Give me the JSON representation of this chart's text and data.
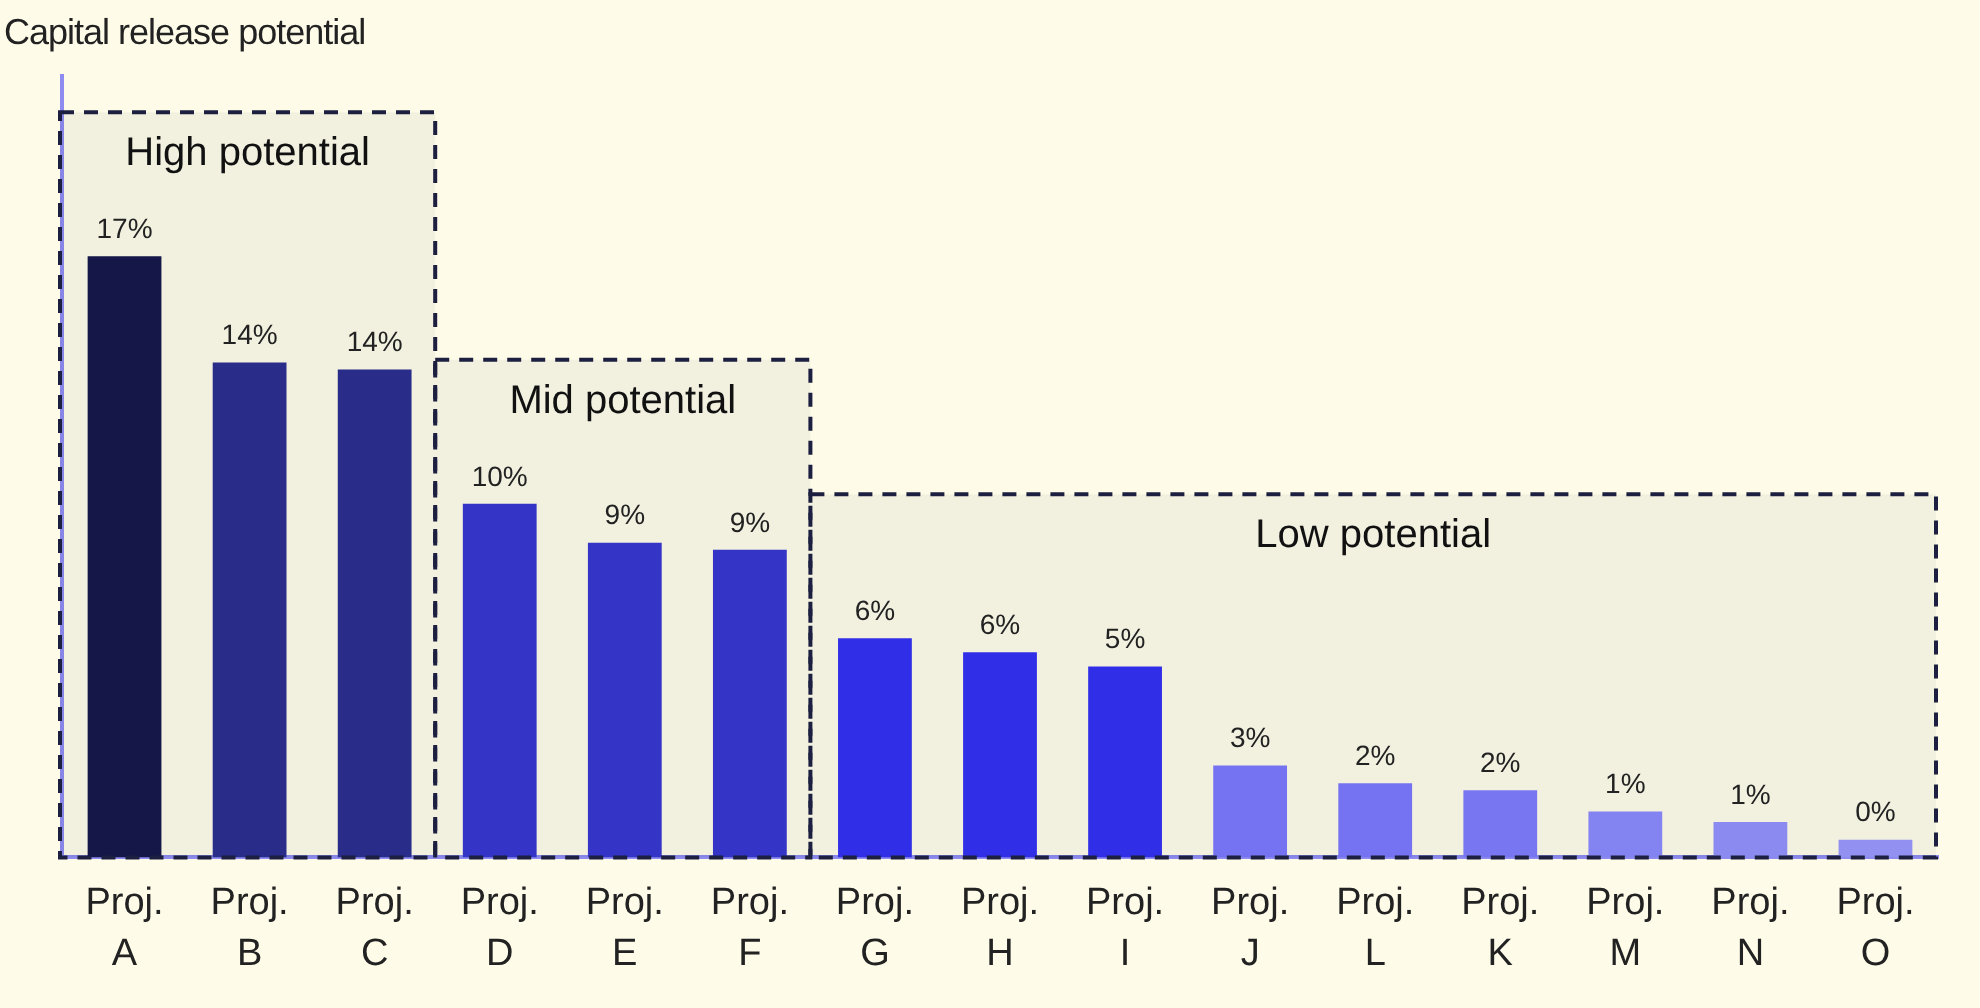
{
  "chart_data": {
    "type": "bar",
    "annotations": [
      "Capital release potential"
    ],
    "categories": [
      "Proj.\nA",
      "Proj.\nB",
      "Proj.\nC",
      "Proj.\nD",
      "Proj.\nE",
      "Proj.\nF",
      "Proj.\nG",
      "Proj.\nH",
      "Proj.\nI",
      "Proj.\nJ",
      "Proj.\nL",
      "Proj.\nK",
      "Proj.\nM",
      "Proj.\nN",
      "Proj.\nO"
    ],
    "values": [
      17,
      14,
      13.8,
      10,
      8.9,
      8.7,
      6.2,
      5.8,
      5.4,
      2.6,
      2.1,
      1.9,
      1.3,
      1,
      0.5
    ],
    "value_labels": [
      "17%",
      "14%",
      "14%",
      "10%",
      "9%",
      "9%",
      "6%",
      "6%",
      "5%",
      "3%",
      "2%",
      "2%",
      "1%",
      "1%",
      "0%"
    ],
    "colors": [
      "#16174a",
      "#2b2d8e",
      "#2b2d8e",
      "#3635cf",
      "#3635cf",
      "#3635cf",
      "#332ff2",
      "#332ff2",
      "#332ff2",
      "#7b78fb",
      "#7b78fb",
      "#7e7cfb",
      "#8a88fb",
      "#9190fb",
      "#9997fb"
    ],
    "bands": [
      {
        "axis": "x",
        "from": "Proj.\nA",
        "to": "Proj.\nC",
        "label": "High potential",
        "color": "#1c1f3f"
      },
      {
        "axis": "x",
        "from": "Proj.\nD",
        "to": "Proj.\nF",
        "label": "Mid potential",
        "color": "#1c1f3f"
      },
      {
        "axis": "x",
        "from": "Proj.\nG",
        "to": "Proj.\nO",
        "label": "Low potential",
        "color": "#1c1f3f"
      }
    ],
    "grid": false,
    "legend": false
  }
}
